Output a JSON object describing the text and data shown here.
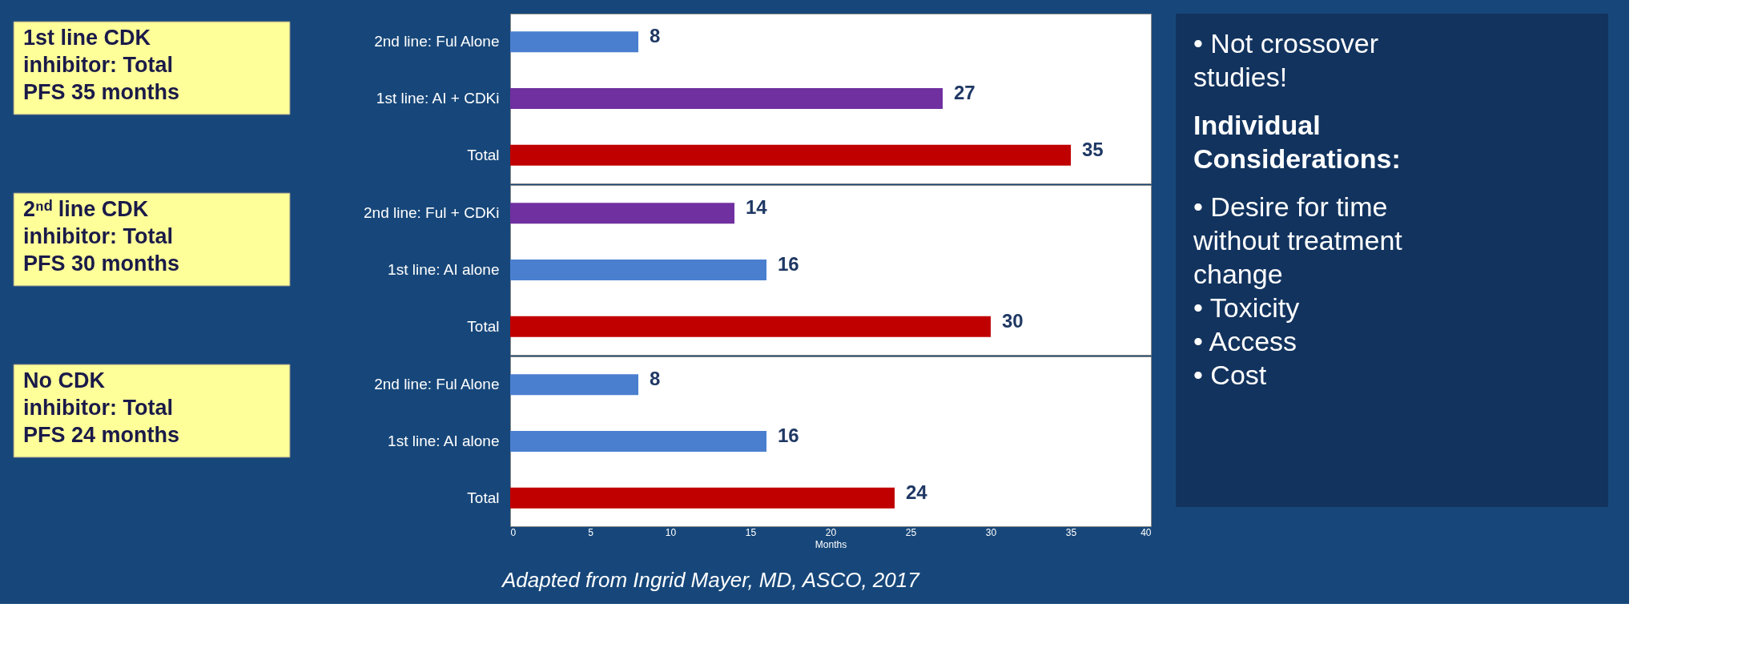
{
  "chart_data": [
    {
      "type": "bar",
      "orientation": "horizontal",
      "annotations": [
        "1st line CDK inhibitor: Total PFS 35 months"
      ],
      "categories": [
        "2nd line: Ful Alone",
        "1st line: AI + CDKi",
        "Total"
      ],
      "values": [
        8,
        27,
        35
      ],
      "colors": [
        "#4a7fd0",
        "#7030a0",
        "#c00000"
      ],
      "xlim": [
        0,
        40
      ],
      "xticks": [
        0,
        5,
        10,
        15,
        20,
        25,
        30,
        35,
        40
      ],
      "tick_labels": "y",
      "data_labels": true
    },
    {
      "type": "bar",
      "orientation": "horizontal",
      "annotations": [
        "2ⁿᵈ line CDK inhibitor: Total PFS 30 months"
      ],
      "categories": [
        "2nd line: Ful + CDKi",
        "1st line: AI alone",
        "Total"
      ],
      "values": [
        14,
        16,
        30
      ],
      "colors": [
        "#7030a0",
        "#4a7fd0",
        "#c00000"
      ],
      "xlim": [
        0,
        40
      ],
      "xticks": [
        0,
        5,
        10,
        15,
        20,
        25,
        30,
        35,
        40
      ],
      "tick_labels": "y",
      "data_labels": true
    },
    {
      "type": "bar",
      "orientation": "horizontal",
      "annotations": [
        "No CDK inhibitor: Total PFS 24 months"
      ],
      "categories": [
        "2nd line: Ful Alone",
        "1st line: AI alone",
        "Total"
      ],
      "values": [
        8,
        16,
        24
      ],
      "colors": [
        "#4a7fd0",
        "#4a7fd0",
        "#c00000"
      ],
      "xlim": [
        0,
        40
      ],
      "xticks": [
        0,
        5,
        10,
        15,
        20,
        25,
        30,
        35,
        40
      ],
      "xlabel": "Months",
      "data_labels": true
    },
    {
      "type": "other",
      "title": "Individual Considerations:",
      "annotations": [
        "• Not crossover studies!",
        "• Desire for time without treatment change",
        "• Toxicity",
        "• Access",
        "• Cost"
      ]
    },
    {
      "type": "other",
      "annotations": [
        "Adapted from Ingrid Mayer, MD, ASCO, 2017"
      ]
    }
  ]
}
